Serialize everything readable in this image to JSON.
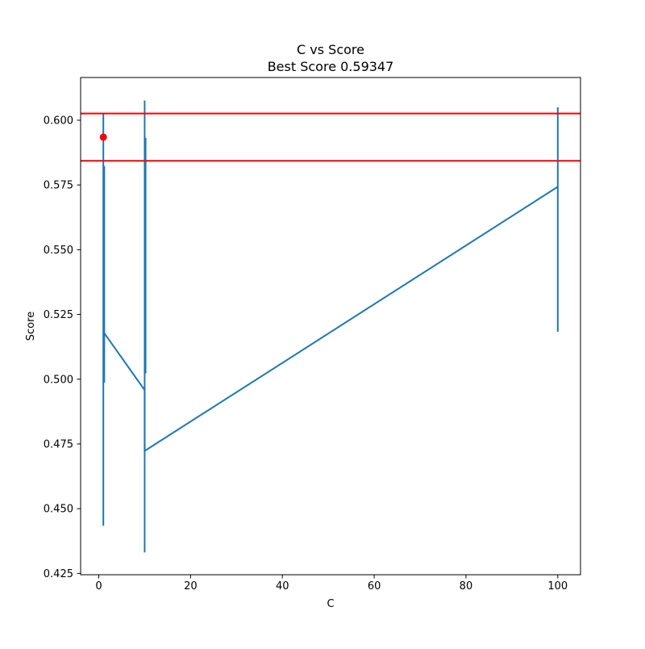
{
  "chart_data": {
    "type": "line",
    "title": "C vs Score",
    "subtitle": "Best Score 0.59347",
    "xlabel": "C",
    "ylabel": "Score",
    "xlim": [
      -3.95,
      104.95
    ],
    "ylim": [
      0.4245,
      0.6165
    ],
    "x_ticks": [
      0,
      20,
      40,
      60,
      80,
      100
    ],
    "x_tick_labels": [
      "0",
      "20",
      "40",
      "60",
      "80",
      "100"
    ],
    "y_ticks": [
      0.425,
      0.45,
      0.475,
      0.5,
      0.525,
      0.55,
      0.575,
      0.6
    ],
    "y_tick_labels": [
      "0.425",
      "0.450",
      "0.475",
      "0.500",
      "0.525",
      "0.550",
      "0.575",
      "0.600"
    ],
    "grid": false,
    "legend": "none",
    "series": [
      {
        "color": "#1f77b4",
        "points": [
          {
            "x": 1,
            "y": 0.5183
          },
          {
            "x": 10,
            "y": 0.4958
          },
          {
            "x": 10,
            "y": 0.4723
          },
          {
            "x": 100,
            "y": 0.5743
          }
        ]
      }
    ],
    "error_bars": [
      {
        "x": 1,
        "ymin": 0.4434,
        "ymax": 0.6023,
        "color": "#1f77b4"
      },
      {
        "x": 1.2,
        "ymin": 0.4987,
        "ymax": 0.5823,
        "color": "#1f77b4"
      },
      {
        "x": 10,
        "ymin": 0.4331,
        "ymax": 0.6076,
        "color": "#1f77b4"
      },
      {
        "x": 10.2,
        "ymin": 0.5023,
        "ymax": 0.5932,
        "color": "#1f77b4"
      },
      {
        "x": 100,
        "ymin": 0.5183,
        "ymax": 0.605,
        "color": "#1f77b4"
      }
    ],
    "hlines": [
      {
        "y": 0.6026,
        "color": "#ff0000"
      },
      {
        "y": 0.5843,
        "color": "#ff0000"
      }
    ],
    "best_point": {
      "x": 1,
      "y": 0.59347,
      "color": "#ff0000"
    }
  }
}
